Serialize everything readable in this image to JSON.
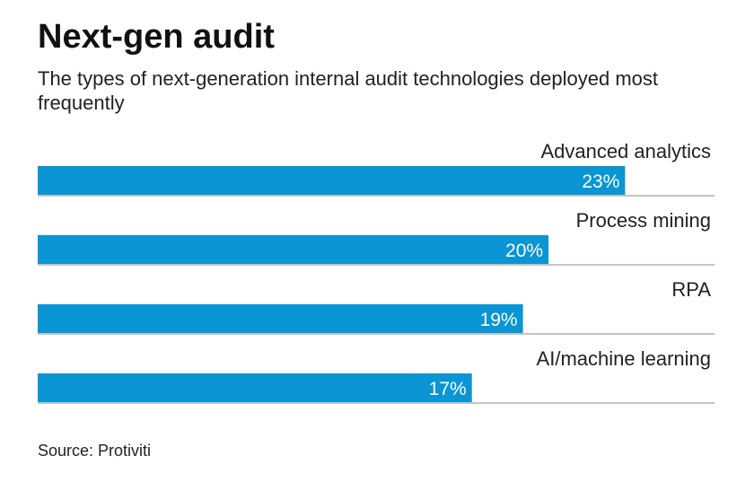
{
  "header": {
    "title": "Next-gen audit",
    "subtitle": "The types of next-generation internal audit technologies deployed most frequently"
  },
  "footer": {
    "source": "Source: Protiviti"
  },
  "colors": {
    "bar": "#0a95d4",
    "divider": "#8a8a8a"
  },
  "chart_data": {
    "type": "bar",
    "orientation": "horizontal",
    "categories": [
      "Advanced analytics",
      "Process mining",
      "RPA",
      "AI/machine learning"
    ],
    "values": [
      23,
      20,
      19,
      17
    ],
    "value_labels": [
      "23%",
      "20%",
      "19%",
      "17%"
    ],
    "unit": "%",
    "xlim": [
      0,
      26.5
    ],
    "grid": false,
    "legend": "none"
  }
}
